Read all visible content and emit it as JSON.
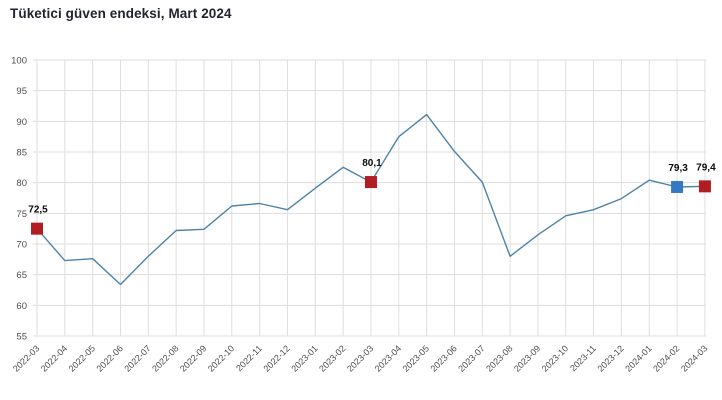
{
  "title": "Tüketici güven endeksi, Mart 2024",
  "colors": {
    "line": "#4e83a9",
    "marker_red": "#b01e24",
    "marker_blue": "#3579c2",
    "grid": "#dedede",
    "title_text": "#20242e",
    "tick_text": "#4d4d4d",
    "point_label_text": "#0a0a0a",
    "background": "#ffffff"
  },
  "chart_data": {
    "type": "line",
    "title": "Tüketici güven endeksi, Mart 2024",
    "xlabel": "",
    "ylabel": "",
    "ylim": [
      55,
      100
    ],
    "yticks": [
      55,
      60,
      65,
      70,
      75,
      80,
      85,
      90,
      95,
      100
    ],
    "grid": true,
    "legend": "none",
    "decimal_separator": ",",
    "categories": [
      "2022-03",
      "2022-04",
      "2022-05",
      "2022-06",
      "2022-07",
      "2022-08",
      "2022-09",
      "2022-10",
      "2022-11",
      "2022-12",
      "2023-01",
      "2023-02",
      "2023-03",
      "2023-04",
      "2023-05",
      "2023-06",
      "2023-07",
      "2023-08",
      "2023-09",
      "2023-10",
      "2023-11",
      "2023-12",
      "2024-01",
      "2024-02",
      "2024-03"
    ],
    "series": [
      {
        "name": "Tüketici güven endeksi",
        "values": [
          72.5,
          67.3,
          67.6,
          63.4,
          68.0,
          72.2,
          72.4,
          76.2,
          76.6,
          75.6,
          79.1,
          82.5,
          80.1,
          87.5,
          91.1,
          85.1,
          80.1,
          68.0,
          71.5,
          74.6,
          75.6,
          77.4,
          80.4,
          79.3,
          79.4
        ]
      }
    ],
    "highlighted_points": [
      {
        "x": "2022-03",
        "value": 72.5,
        "label": "72,5",
        "marker": "square",
        "color": "red"
      },
      {
        "x": "2023-03",
        "value": 80.1,
        "label": "80,1",
        "marker": "square",
        "color": "red"
      },
      {
        "x": "2024-02",
        "value": 79.3,
        "label": "79,3",
        "marker": "square",
        "color": "blue"
      },
      {
        "x": "2024-03",
        "value": 79.4,
        "label": "79,4",
        "marker": "square",
        "color": "red"
      }
    ]
  }
}
